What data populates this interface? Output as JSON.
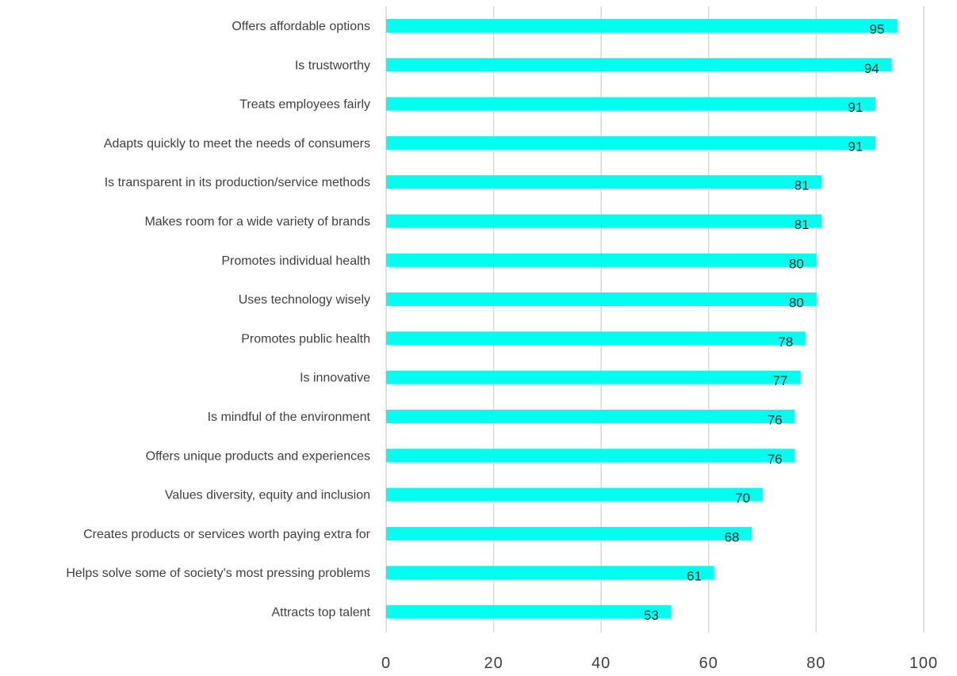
{
  "chart_data": {
    "type": "bar",
    "orientation": "horizontal",
    "categories": [
      "Offers affordable options",
      "Is trustworthy",
      "Treats employees fairly",
      "Adapts quickly to meet the needs of consumers",
      "Is transparent in its production/service methods",
      "Makes room for a wide variety of brands",
      "Promotes individual health",
      "Uses technology wisely",
      "Promotes public health",
      "Is innovative",
      "Is mindful of the environment",
      "Offers unique products and experiences",
      "Values diversity, equity and inclusion",
      "Creates products or services worth paying extra for",
      "Helps solve some of society's most pressing problems",
      "Attracts top talent"
    ],
    "values": [
      95,
      94,
      91,
      91,
      81,
      81,
      80,
      80,
      78,
      77,
      76,
      76,
      70,
      68,
      61,
      53
    ],
    "data_labels": [
      "95",
      "94",
      "91",
      "91",
      "81",
      "81",
      "80",
      "80",
      "78",
      "77",
      "76",
      "76",
      "70",
      "68",
      "61",
      "53"
    ],
    "xticks": [
      "0",
      "20",
      "40",
      "60",
      "80",
      "100"
    ],
    "xtick_values": [
      0,
      20,
      40,
      60,
      80,
      100
    ],
    "xlim": [
      0,
      100
    ],
    "grid": true,
    "legend": "none",
    "title": "",
    "xlabel": "",
    "ylabel": "",
    "colors": {
      "bar": "#00ffee",
      "grid": "#d9d9d9",
      "text": "#404040",
      "data_label": "#262626"
    }
  }
}
